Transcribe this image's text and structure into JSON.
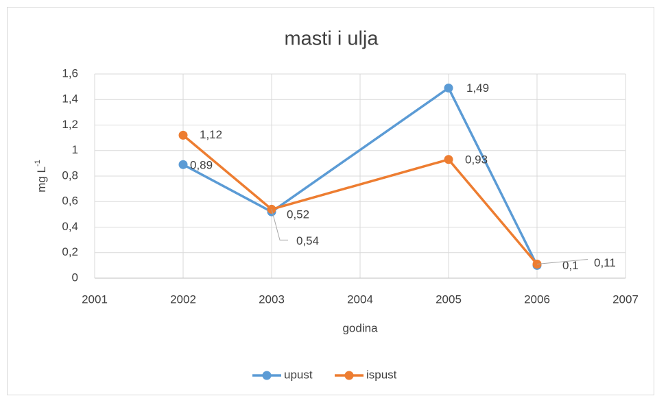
{
  "chart_data": {
    "type": "line",
    "title": "masti i ulja",
    "xlabel": "godina",
    "ylabel": {
      "text": "mg L",
      "superscript": "-1"
    },
    "x": [
      2002,
      2003,
      2005,
      2006
    ],
    "series": [
      {
        "name": "upust",
        "color": "#5b9bd5",
        "values": [
          0.89,
          0.52,
          1.49,
          0.1
        ],
        "value_labels": [
          "0,89",
          "0,52",
          "1,49",
          "0,1"
        ]
      },
      {
        "name": "ispust",
        "color": "#ed7d31",
        "values": [
          1.12,
          0.54,
          0.93,
          0.11
        ],
        "value_labels": [
          "1,12",
          "0,54",
          "0,93",
          "0,11"
        ]
      }
    ],
    "xlim": [
      2001,
      2007
    ],
    "xticks": [
      2001,
      2002,
      2003,
      2004,
      2005,
      2006,
      2007
    ],
    "ylim": [
      0,
      1.6
    ],
    "yticks": [
      0,
      {
        "value": 0.2,
        "label": "0,2"
      },
      {
        "value": 0.4,
        "label": "0,4"
      },
      {
        "value": 0.6,
        "label": "0,6"
      },
      {
        "value": 0.8,
        "label": "0,8"
      },
      1,
      {
        "value": 1.2,
        "label": "1,2"
      },
      {
        "value": 1.4,
        "label": "1,4"
      },
      {
        "value": 1.6,
        "label": "1,6"
      }
    ],
    "grid": true,
    "legend": "bottom"
  }
}
